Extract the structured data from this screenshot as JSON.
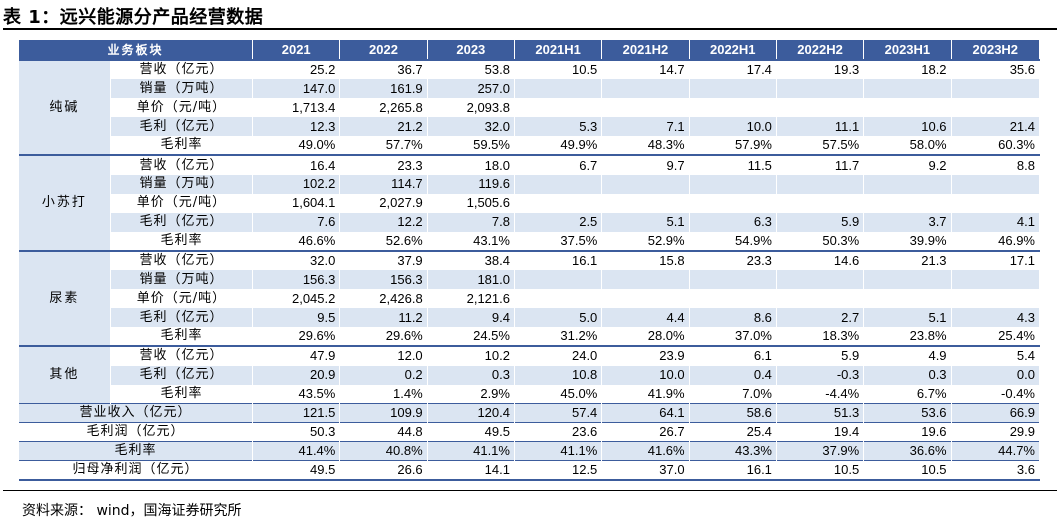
{
  "title": "表 1：远兴能源分产品经营数据",
  "table": {
    "corner": "业务板块",
    "columns": [
      "2021",
      "2022",
      "2023",
      "2021H1",
      "2021H2",
      "2022H1",
      "2022H2",
      "2023H1",
      "2023H2"
    ],
    "groups": [
      {
        "name": "纯碱",
        "rows": [
          {
            "label": "营收（亿元）",
            "values": [
              "25.2",
              "36.7",
              "53.8",
              "10.5",
              "14.7",
              "17.4",
              "19.3",
              "18.2",
              "35.6"
            ]
          },
          {
            "label": "销量（万吨）",
            "values": [
              "147.0",
              "161.9",
              "257.0",
              "",
              "",
              "",
              "",
              "",
              ""
            ]
          },
          {
            "label": "单价（元/吨）",
            "values": [
              "1,713.4",
              "2,265.8",
              "2,093.8",
              "",
              "",
              "",
              "",
              "",
              ""
            ]
          },
          {
            "label": "毛利（亿元）",
            "values": [
              "12.3",
              "21.2",
              "32.0",
              "5.3",
              "7.1",
              "10.0",
              "11.1",
              "10.6",
              "21.4"
            ]
          },
          {
            "label": "毛利率",
            "values": [
              "49.0%",
              "57.7%",
              "59.5%",
              "49.9%",
              "48.3%",
              "57.9%",
              "57.5%",
              "58.0%",
              "60.3%"
            ]
          }
        ]
      },
      {
        "name": "小苏打",
        "rows": [
          {
            "label": "营收（亿元）",
            "values": [
              "16.4",
              "23.3",
              "18.0",
              "6.7",
              "9.7",
              "11.5",
              "11.7",
              "9.2",
              "8.8"
            ]
          },
          {
            "label": "销量（万吨）",
            "values": [
              "102.2",
              "114.7",
              "119.6",
              "",
              "",
              "",
              "",
              "",
              ""
            ]
          },
          {
            "label": "单价（元/吨）",
            "values": [
              "1,604.1",
              "2,027.9",
              "1,505.6",
              "",
              "",
              "",
              "",
              "",
              ""
            ]
          },
          {
            "label": "毛利（亿元）",
            "values": [
              "7.6",
              "12.2",
              "7.8",
              "2.5",
              "5.1",
              "6.3",
              "5.9",
              "3.7",
              "4.1"
            ]
          },
          {
            "label": "毛利率",
            "values": [
              "46.6%",
              "52.6%",
              "43.1%",
              "37.5%",
              "52.9%",
              "54.9%",
              "50.3%",
              "39.9%",
              "46.9%"
            ]
          }
        ]
      },
      {
        "name": "尿素",
        "rows": [
          {
            "label": "营收（亿元）",
            "values": [
              "32.0",
              "37.9",
              "38.4",
              "16.1",
              "15.8",
              "23.3",
              "14.6",
              "21.3",
              "17.1"
            ]
          },
          {
            "label": "销量（万吨）",
            "values": [
              "156.3",
              "156.3",
              "181.0",
              "",
              "",
              "",
              "",
              "",
              ""
            ]
          },
          {
            "label": "单价（元/吨）",
            "values": [
              "2,045.2",
              "2,426.8",
              "2,121.6",
              "",
              "",
              "",
              "",
              "",
              ""
            ]
          },
          {
            "label": "毛利（亿元）",
            "values": [
              "9.5",
              "11.2",
              "9.4",
              "5.0",
              "4.4",
              "8.6",
              "2.7",
              "5.1",
              "4.3"
            ]
          },
          {
            "label": "毛利率",
            "values": [
              "29.6%",
              "29.6%",
              "24.5%",
              "31.2%",
              "28.0%",
              "37.0%",
              "18.3%",
              "23.8%",
              "25.4%"
            ]
          }
        ]
      },
      {
        "name": "其他",
        "rows": [
          {
            "label": "营收（亿元）",
            "values": [
              "47.9",
              "12.0",
              "10.2",
              "24.0",
              "23.9",
              "6.1",
              "5.9",
              "4.9",
              "5.4"
            ]
          },
          {
            "label": "毛利（亿元）",
            "values": [
              "20.9",
              "0.2",
              "0.3",
              "10.8",
              "10.0",
              "0.4",
              "-0.3",
              "0.3",
              "0.0"
            ]
          },
          {
            "label": "毛利率",
            "values": [
              "43.5%",
              "1.4%",
              "2.9%",
              "45.0%",
              "41.9%",
              "7.0%",
              "-4.4%",
              "6.7%",
              "-0.4%"
            ]
          }
        ]
      }
    ],
    "totals": [
      {
        "label": "营业收入（亿元）",
        "values": [
          "121.5",
          "109.9",
          "120.4",
          "57.4",
          "64.1",
          "58.6",
          "51.3",
          "53.6",
          "66.9"
        ]
      },
      {
        "label": "毛利润（亿元）",
        "values": [
          "50.3",
          "44.8",
          "49.5",
          "23.6",
          "26.7",
          "25.4",
          "19.4",
          "19.6",
          "29.9"
        ]
      },
      {
        "label": "毛利率",
        "values": [
          "41.4%",
          "40.8%",
          "41.1%",
          "41.1%",
          "41.6%",
          "43.3%",
          "37.9%",
          "36.6%",
          "44.7%"
        ]
      },
      {
        "label": "归母净利润（亿元）",
        "values": [
          "49.5",
          "26.6",
          "14.1",
          "12.5",
          "37.0",
          "16.1",
          "10.5",
          "10.5",
          "3.6"
        ]
      }
    ]
  },
  "source": "资料来源： wind，国海证券研究所",
  "colors": {
    "header": "#3c5c9c",
    "band": "#dbe5f2"
  }
}
